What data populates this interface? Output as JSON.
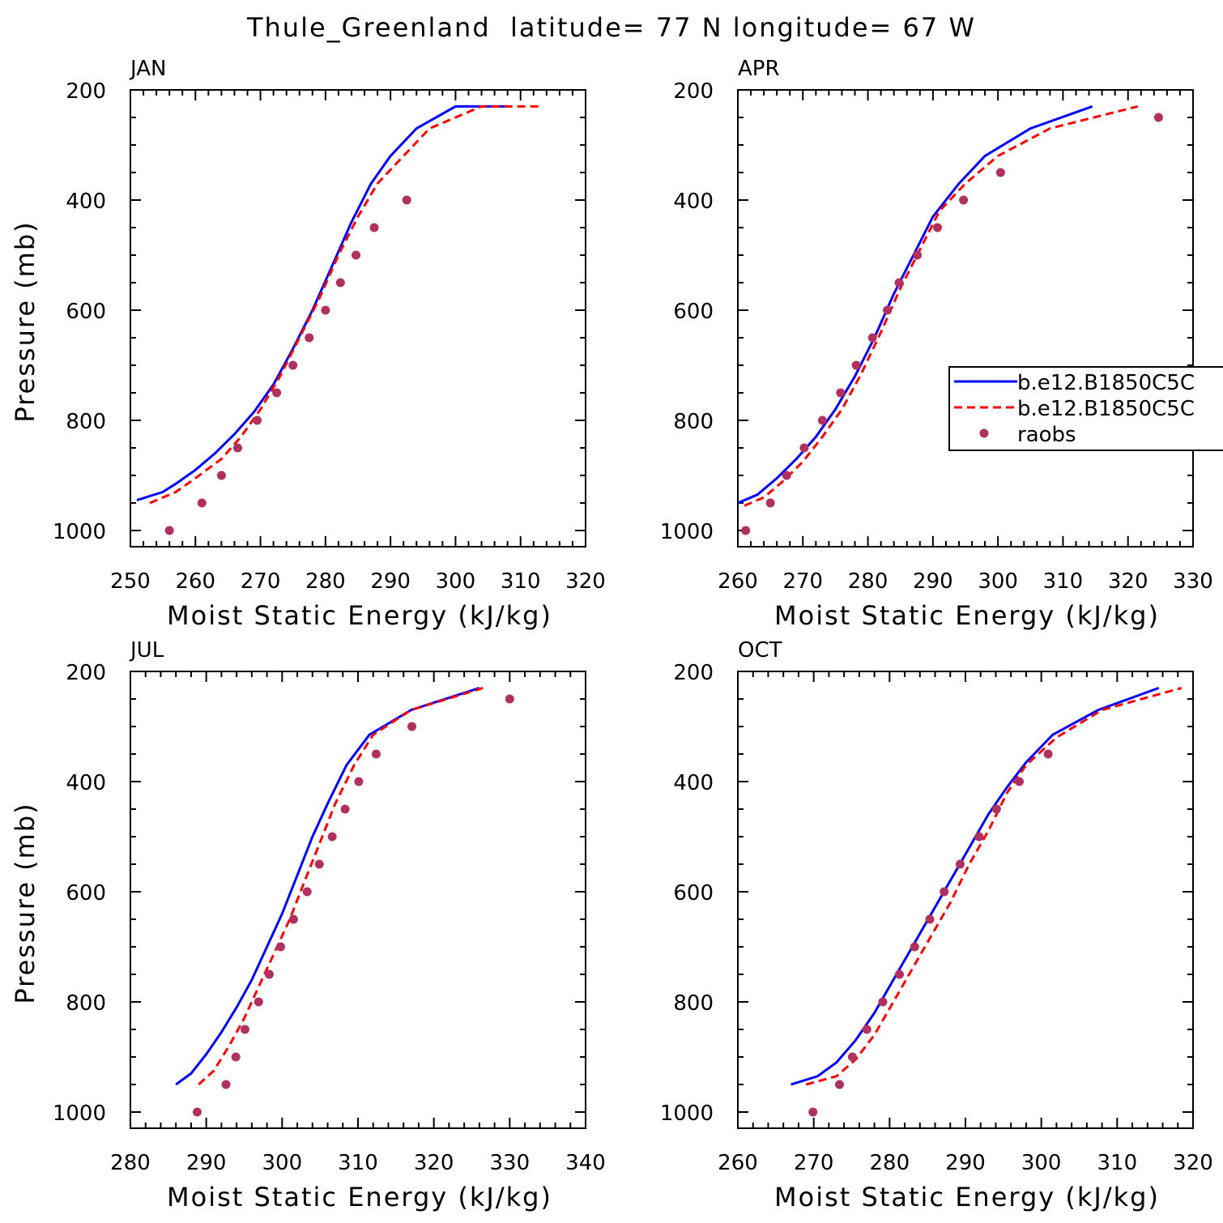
{
  "figure": {
    "title": "Thule_Greenland  latitude= 77 N longitude= 67 W"
  },
  "legend": {
    "entries": [
      {
        "label": "b.e12.B1850C5C",
        "style": "solid",
        "color": "#0000ff"
      },
      {
        "label": "b.e12.B1850C5C",
        "style": "dashed",
        "color": "#ff0000"
      },
      {
        "label": "raobs",
        "style": "dot",
        "color": "#b03060"
      }
    ]
  },
  "colors": {
    "model1": "#0000ff",
    "model2": "#ff0000",
    "obs": "#b03060",
    "axes": "#000000"
  },
  "chart_data": [
    {
      "type": "line",
      "panel_label": "JAN",
      "xlabel": "Moist Static Energy (kJ/kg)",
      "ylabel": "Pressure (mb)",
      "xlim": [
        250,
        320
      ],
      "ylim": [
        1000,
        200
      ],
      "xticks": [
        250,
        260,
        270,
        280,
        290,
        300,
        310,
        320
      ],
      "yticks": [
        1000,
        800,
        600,
        400,
        200
      ],
      "series": [
        {
          "style": "solid",
          "x": [
            251,
            255,
            257,
            260,
            263,
            266,
            269,
            272,
            275,
            278,
            281,
            284,
            287,
            290,
            294,
            300,
            308
          ],
          "y": [
            945,
            930,
            915,
            890,
            860,
            825,
            785,
            735,
            670,
            600,
            520,
            440,
            370,
            320,
            270,
            230,
            230
          ]
        },
        {
          "style": "dashed",
          "x": [
            253,
            257,
            260,
            264,
            267,
            270,
            273,
            276,
            279,
            282,
            285,
            288,
            292,
            296,
            304,
            313
          ],
          "y": [
            950,
            930,
            905,
            870,
            830,
            780,
            720,
            650,
            580,
            500,
            430,
            370,
            320,
            270,
            230,
            230
          ]
        },
        {
          "style": "dot",
          "x": [
            256,
            261,
            264,
            266.5,
            269.5,
            272.5,
            275,
            277.5,
            280,
            282.3,
            284.7,
            287.5,
            292.5
          ],
          "y": [
            1000,
            950,
            900,
            850,
            800,
            750,
            700,
            650,
            600,
            550,
            500,
            450,
            400
          ]
        }
      ]
    },
    {
      "type": "line",
      "panel_label": "APR",
      "xlabel": "Moist Static Energy (kJ/kg)",
      "ylabel": "Pressure (mb)",
      "xlim": [
        260,
        330
      ],
      "ylim": [
        1000,
        200
      ],
      "xticks": [
        260,
        270,
        280,
        290,
        300,
        310,
        320,
        330
      ],
      "yticks": [
        1000,
        800,
        600,
        400,
        200
      ],
      "series": [
        {
          "style": "solid",
          "x": [
            260,
            263,
            266,
            269,
            272,
            275,
            278,
            281,
            284,
            287,
            290,
            294,
            298,
            305,
            314.5
          ],
          "y": [
            950,
            935,
            905,
            870,
            830,
            780,
            720,
            650,
            570,
            500,
            430,
            370,
            320,
            270,
            230
          ]
        },
        {
          "style": "dashed",
          "x": [
            261,
            264,
            267,
            270,
            273,
            276,
            279,
            282,
            285,
            288,
            291,
            295,
            300,
            308,
            321.5
          ],
          "y": [
            955,
            940,
            910,
            875,
            830,
            780,
            715,
            640,
            560,
            490,
            420,
            370,
            320,
            270,
            230
          ]
        },
        {
          "style": "dot",
          "x": [
            261.2,
            265,
            267.5,
            270.2,
            273,
            275.8,
            278.2,
            280.7,
            283,
            284.8,
            287.6,
            290.7,
            294.7,
            300.4,
            324.7
          ],
          "y": [
            1000,
            950,
            900,
            850,
            800,
            750,
            700,
            650,
            600,
            550,
            500,
            450,
            400,
            350,
            250
          ]
        }
      ]
    },
    {
      "type": "line",
      "panel_label": "JUL",
      "xlabel": "Moist Static Energy (kJ/kg)",
      "ylabel": "Pressure (mb)",
      "xlim": [
        280,
        340
      ],
      "ylim": [
        1000,
        200
      ],
      "xticks": [
        280,
        290,
        300,
        310,
        320,
        330,
        340
      ],
      "yticks": [
        1000,
        800,
        600,
        400,
        200
      ],
      "series": [
        {
          "style": "solid",
          "x": [
            286,
            288,
            290,
            292,
            294,
            296,
            298,
            300,
            302,
            304,
            306,
            308.5,
            311.5,
            317,
            326
          ],
          "y": [
            950,
            930,
            895,
            855,
            810,
            760,
            700,
            640,
            570,
            500,
            440,
            370,
            315,
            270,
            230
          ]
        },
        {
          "style": "dashed",
          "x": [
            289,
            291,
            293,
            295,
            297,
            299,
            301,
            303,
            305,
            307,
            309.5,
            312,
            317,
            326.5
          ],
          "y": [
            950,
            925,
            880,
            830,
            770,
            710,
            650,
            580,
            510,
            440,
            370,
            315,
            270,
            230
          ]
        },
        {
          "style": "dot",
          "x": [
            288.8,
            292.6,
            293.9,
            295.1,
            296.9,
            298.3,
            299.8,
            301.5,
            303.3,
            304.9,
            306.6,
            308.3,
            310.1,
            312.4,
            317.1,
            330
          ],
          "y": [
            1000,
            950,
            900,
            850,
            800,
            750,
            700,
            650,
            600,
            550,
            500,
            450,
            400,
            350,
            300,
            250
          ]
        }
      ]
    },
    {
      "type": "line",
      "panel_label": "OCT",
      "xlabel": "Moist Static Energy (kJ/kg)",
      "ylabel": "Pressure (mb)",
      "xlim": [
        260,
        320
      ],
      "ylim": [
        1000,
        200
      ],
      "xticks": [
        260,
        270,
        280,
        290,
        300,
        310,
        320
      ],
      "yticks": [
        1000,
        800,
        600,
        400,
        200
      ],
      "series": [
        {
          "style": "solid",
          "x": [
            267,
            270.5,
            273,
            275.5,
            278,
            280.5,
            283,
            285.5,
            288,
            290.5,
            293,
            295.5,
            298,
            301.5,
            307.5,
            315.5
          ],
          "y": [
            950,
            935,
            910,
            870,
            820,
            760,
            700,
            640,
            580,
            520,
            460,
            410,
            365,
            315,
            270,
            230
          ]
        },
        {
          "style": "dashed",
          "x": [
            269,
            273,
            275.5,
            278,
            280.5,
            283,
            285.5,
            288,
            290.5,
            293,
            295.5,
            298,
            302,
            308,
            318.5
          ],
          "y": [
            950,
            935,
            905,
            860,
            800,
            740,
            680,
            620,
            550,
            490,
            420,
            370,
            320,
            270,
            230
          ]
        },
        {
          "style": "dot",
          "x": [
            269.9,
            273.4,
            275.1,
            277,
            279.1,
            281.3,
            283.3,
            285.3,
            287.2,
            289.3,
            291.8,
            294.1,
            297.1,
            300.9
          ],
          "y": [
            1000,
            950,
            900,
            850,
            800,
            750,
            700,
            650,
            600,
            550,
            500,
            450,
            400,
            350
          ]
        }
      ]
    }
  ]
}
